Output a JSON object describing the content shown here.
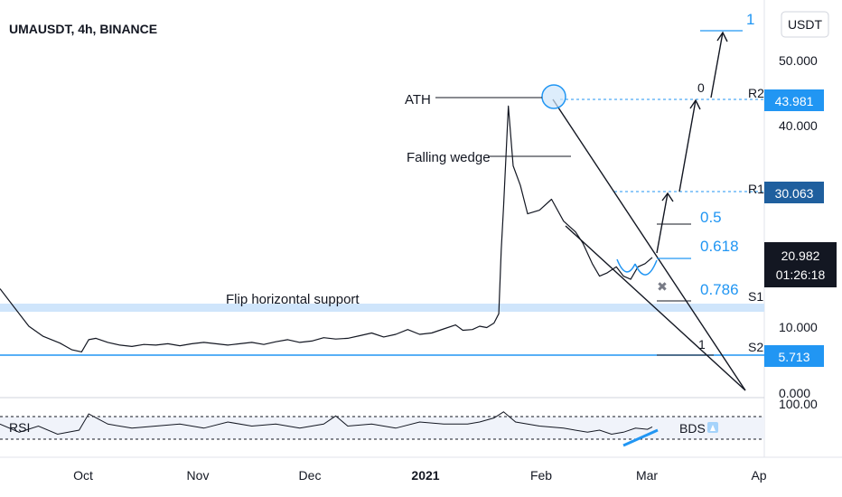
{
  "chart_data": {
    "type": "line",
    "title": "UMAUSDT, 4h, BINANCE",
    "currency_button": "USDT",
    "y_ticks": [
      "50.000",
      "40.000",
      "10.000",
      "0.000"
    ],
    "rsi_tick": "100.00",
    "x_ticks": [
      "Oct",
      "Nov",
      "Dec",
      "2021",
      "Feb",
      "Mar",
      "Ap"
    ],
    "price_badges": {
      "r2": {
        "label": "R2",
        "value": "43.981"
      },
      "r1": {
        "label": "R1",
        "value": "30.063"
      },
      "current": {
        "value": "20.982",
        "countdown": "01:26:18"
      },
      "s1": {
        "label": "S1"
      },
      "s2": {
        "label": "S2",
        "value": "5.713"
      }
    },
    "annotations": {
      "ath": "ATH",
      "wedge": "Falling wedge",
      "flip": "Flip horizontal support",
      "rsi": "RSI",
      "bds": "BDS"
    },
    "fib_labels": {
      "top": "1",
      "zero": "0",
      "half": "0.5",
      "f618": "0.618",
      "f786": "0.786",
      "one": "1"
    },
    "series": [
      {
        "values": [
          [
            0,
            16
          ],
          [
            0.06,
            13
          ],
          [
            0.12,
            10
          ],
          [
            0.18,
            8.5
          ],
          [
            0.25,
            7.5
          ],
          [
            0.3,
            6.5
          ],
          [
            0.34,
            6.2
          ],
          [
            0.37,
            8
          ],
          [
            0.4,
            8.2
          ],
          [
            0.45,
            7.6
          ],
          [
            0.5,
            7.2
          ],
          [
            0.55,
            7
          ],
          [
            0.6,
            7.3
          ],
          [
            0.65,
            7.2
          ],
          [
            0.7,
            7.4
          ],
          [
            0.75,
            7.1
          ],
          [
            0.8,
            7.4
          ],
          [
            0.85,
            7.6
          ],
          [
            0.9,
            7.4
          ],
          [
            0.95,
            7.2
          ],
          [
            1.0,
            7.4
          ],
          [
            1.05,
            7.6
          ],
          [
            1.1,
            7.3
          ],
          [
            1.15,
            7.7
          ],
          [
            1.2,
            8.0
          ],
          [
            1.25,
            7.6
          ],
          [
            1.3,
            7.8
          ],
          [
            1.35,
            8.3
          ],
          [
            1.4,
            8.1
          ],
          [
            1.45,
            8.2
          ],
          [
            1.5,
            8.6
          ],
          [
            1.55,
            9.0
          ],
          [
            1.6,
            8.4
          ],
          [
            1.65,
            8.8
          ],
          [
            1.7,
            9.5
          ],
          [
            1.75,
            8.8
          ],
          [
            1.8,
            9.0
          ],
          [
            1.85,
            9.6
          ],
          [
            1.9,
            10.2
          ],
          [
            1.93,
            9.4
          ],
          [
            1.97,
            9.5
          ],
          [
            2.0,
            10.0
          ],
          [
            2.03,
            9.8
          ],
          [
            2.06,
            10.5
          ],
          [
            2.08,
            12.0
          ],
          [
            2.09,
            22.0
          ],
          [
            2.1,
            28.0
          ],
          [
            2.12,
            43.0
          ],
          [
            2.14,
            34.0
          ],
          [
            2.17,
            31.0
          ],
          [
            2.2,
            27.0
          ],
          [
            2.25,
            27.5
          ],
          [
            2.3,
            29.0
          ],
          [
            2.35,
            26.0
          ],
          [
            2.4,
            24.5
          ],
          [
            2.43,
            23.0
          ],
          [
            2.47,
            20.0
          ],
          [
            2.5,
            18.0
          ],
          [
            2.53,
            18.5
          ],
          [
            2.57,
            19.5
          ],
          [
            2.6,
            18.0
          ],
          [
            2.63,
            17.5
          ],
          [
            2.66,
            19.5
          ],
          [
            2.69,
            20.0
          ],
          [
            2.72,
            21.0
          ]
        ]
      }
    ],
    "rsi_series": [
      {
        "values": [
          [
            0,
            55
          ],
          [
            0.08,
            35
          ],
          [
            0.16,
            50
          ],
          [
            0.24,
            30
          ],
          [
            0.33,
            40
          ],
          [
            0.37,
            80
          ],
          [
            0.45,
            55
          ],
          [
            0.55,
            45
          ],
          [
            0.65,
            50
          ],
          [
            0.75,
            55
          ],
          [
            0.85,
            45
          ],
          [
            0.95,
            60
          ],
          [
            1.05,
            50
          ],
          [
            1.15,
            55
          ],
          [
            1.25,
            45
          ],
          [
            1.35,
            55
          ],
          [
            1.4,
            75
          ],
          [
            1.45,
            50
          ],
          [
            1.55,
            55
          ],
          [
            1.65,
            45
          ],
          [
            1.75,
            60
          ],
          [
            1.85,
            55
          ],
          [
            1.95,
            55
          ],
          [
            2.0,
            60
          ],
          [
            2.06,
            70
          ],
          [
            2.1,
            85
          ],
          [
            2.15,
            60
          ],
          [
            2.25,
            50
          ],
          [
            2.35,
            45
          ],
          [
            2.45,
            35
          ],
          [
            2.5,
            40
          ],
          [
            2.55,
            30
          ],
          [
            2.6,
            35
          ],
          [
            2.65,
            45
          ],
          [
            2.7,
            42
          ],
          [
            2.72,
            48
          ]
        ]
      }
    ]
  }
}
